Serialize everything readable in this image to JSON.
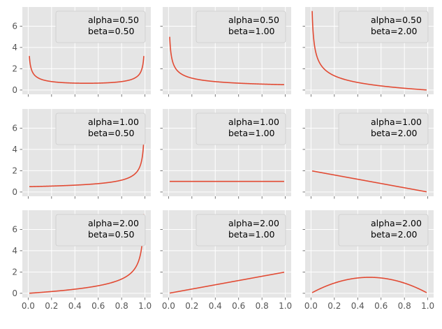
{
  "chart_data": {
    "type": "line",
    "grid": true,
    "layout": "3x3 grid of subplots, shared x and y axes",
    "line_color": "#E24A33",
    "background_color": "#E5E5E5",
    "legend_placement": "upper right",
    "xlim": [
      -0.05,
      1.05
    ],
    "ylim": [
      -0.4,
      7.8
    ],
    "x_ticks": [
      "0.0",
      "0.2",
      "0.4",
      "0.6",
      "0.8",
      "1.0"
    ],
    "y_ticks": [
      "0",
      "2",
      "4",
      "6"
    ],
    "panels": [
      {
        "alpha": 0.5,
        "beta": 0.5,
        "legend": [
          "alpha=0.50",
          "beta=0.50"
        ]
      },
      {
        "alpha": 0.5,
        "beta": 1.0,
        "legend": [
          "alpha=0.50",
          "beta=1.00"
        ]
      },
      {
        "alpha": 0.5,
        "beta": 2.0,
        "legend": [
          "alpha=0.50",
          "beta=2.00"
        ]
      },
      {
        "alpha": 1.0,
        "beta": 0.5,
        "legend": [
          "alpha=1.00",
          "beta=0.50"
        ]
      },
      {
        "alpha": 1.0,
        "beta": 1.0,
        "legend": [
          "alpha=1.00",
          "beta=1.00"
        ]
      },
      {
        "alpha": 1.0,
        "beta": 2.0,
        "legend": [
          "alpha=1.00",
          "beta=2.00"
        ]
      },
      {
        "alpha": 2.0,
        "beta": 0.5,
        "legend": [
          "alpha=2.00",
          "beta=0.50"
        ]
      },
      {
        "alpha": 2.0,
        "beta": 1.0,
        "legend": [
          "alpha=2.00",
          "beta=1.00"
        ]
      },
      {
        "alpha": 2.0,
        "beta": 2.0,
        "legend": [
          "alpha=2.00",
          "beta=2.00"
        ]
      }
    ]
  }
}
